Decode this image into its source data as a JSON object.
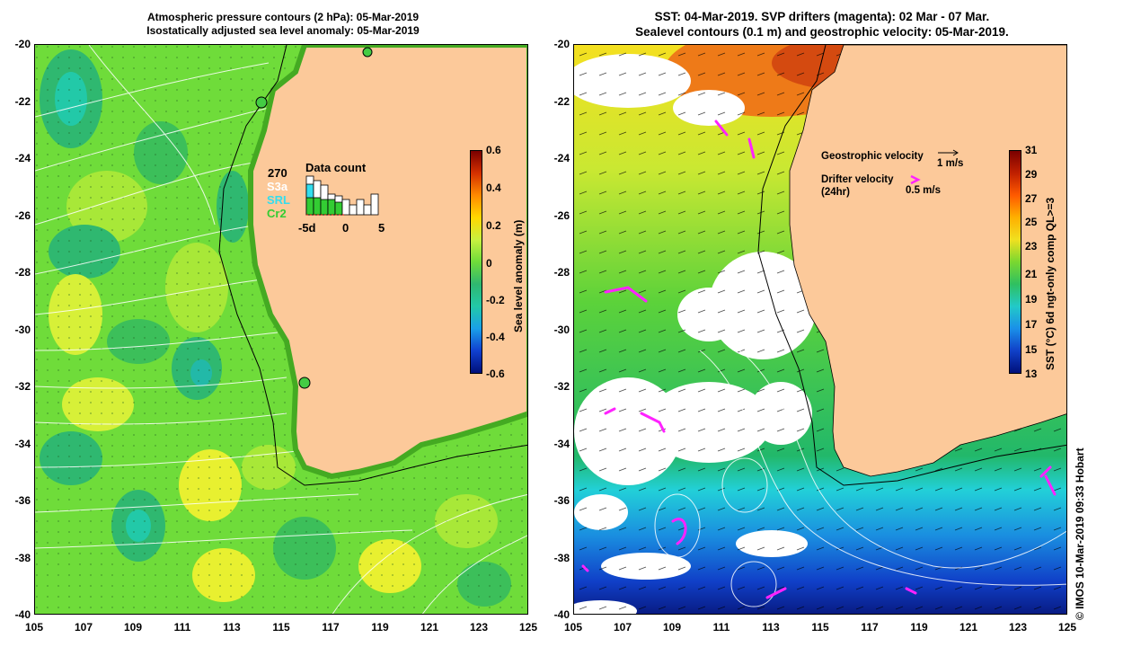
{
  "left_panel": {
    "title_line1": "Atmospheric pressure contours (2 hPa): 05-Mar-2019",
    "title_line2": "Isostatically adjusted sea level anomaly: 05-Mar-2019",
    "colorbar": {
      "label": "Sea level anomaly (m)",
      "ticks": [
        "0.6",
        "0.4",
        "0.2",
        "0",
        "-0.2",
        "-0.4",
        "-0.6"
      ]
    },
    "data_count": {
      "title": "Data count",
      "total": "270",
      "sources": [
        "S3a",
        "SRL",
        "Cr2"
      ],
      "source_colors": [
        "#ffffff",
        "#33ddee",
        "#33cc33"
      ],
      "axis_ticks": [
        "-5d",
        "0",
        "5"
      ]
    }
  },
  "right_panel": {
    "title_line1": "SST: 04-Mar-2019. SVP drifters (magenta): 02 Mar - 07 Mar.",
    "title_line2": "Sealevel contours (0.1 m) and geostrophic velocity: 05-Mar-2019.",
    "legend": {
      "geo_label": "Geostrophic velocity",
      "geo_scale": "1 m/s",
      "drifter_label": "Drifter velocity",
      "drifter_sub": "(24hr)",
      "drifter_scale": "0.5 m/s"
    },
    "colorbar": {
      "label": "SST (°C) 6d ngt-only comp QL>=3",
      "ticks": [
        "31",
        "29",
        "27",
        "25",
        "23",
        "21",
        "19",
        "17",
        "15",
        "13"
      ]
    }
  },
  "axes": {
    "lat_ticks": [
      "-20",
      "-22",
      "-24",
      "-26",
      "-28",
      "-30",
      "-32",
      "-34",
      "-36",
      "-38",
      "-40"
    ],
    "lon_ticks": [
      "105",
      "107",
      "109",
      "111",
      "113",
      "115",
      "117",
      "119",
      "121",
      "123",
      "125"
    ]
  },
  "credit": "© IMOS 10-Mar-2019 09:33 Hobart",
  "colors": {
    "land": "#fcc99a",
    "sla_green": "#6fdc3a",
    "drifter": "#ff22ff"
  }
}
